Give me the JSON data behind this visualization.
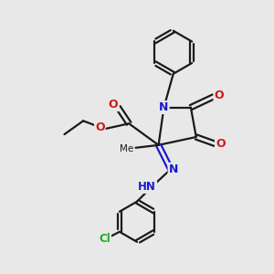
{
  "bg_color": "#e8e8e8",
  "bond_color": "#1a1a1a",
  "N_color": "#1a1acc",
  "O_color": "#cc1a1a",
  "Cl_color": "#22aa22",
  "line_width": 1.6,
  "figsize": [
    3.0,
    3.0
  ],
  "dpi": 100,
  "xlim": [
    0,
    10
  ],
  "ylim": [
    0,
    10
  ]
}
